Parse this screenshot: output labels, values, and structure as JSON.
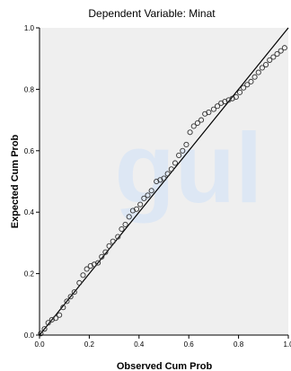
{
  "chart_data": {
    "type": "scatter",
    "title": "Dependent Variable: Minat",
    "xlabel": "Observed Cum Prob",
    "ylabel": "Expected Cum Prob",
    "xlim": [
      0.0,
      1.0
    ],
    "ylim": [
      0.0,
      1.0
    ],
    "x_ticks": [
      "0.0",
      "0.2",
      "0.4",
      "0.6",
      "0.8",
      "1.0"
    ],
    "y_ticks": [
      "0.0",
      "0.2",
      "0.4",
      "0.6",
      "0.8",
      "1.0"
    ],
    "grid": false,
    "legend": false,
    "reference_line": {
      "from": [
        0,
        0
      ],
      "to": [
        1,
        1
      ]
    },
    "background_text": "gul",
    "colors": {
      "plot_area": "#efefef",
      "points": "#333333",
      "line": "#000000",
      "watermark": "#dde7f4"
    },
    "points": [
      [
        0.005,
        0.005
      ],
      [
        0.02,
        0.02
      ],
      [
        0.035,
        0.04
      ],
      [
        0.05,
        0.05
      ],
      [
        0.065,
        0.055
      ],
      [
        0.08,
        0.065
      ],
      [
        0.095,
        0.09
      ],
      [
        0.11,
        0.11
      ],
      [
        0.125,
        0.125
      ],
      [
        0.14,
        0.14
      ],
      [
        0.16,
        0.17
      ],
      [
        0.175,
        0.195
      ],
      [
        0.19,
        0.215
      ],
      [
        0.205,
        0.225
      ],
      [
        0.22,
        0.23
      ],
      [
        0.235,
        0.235
      ],
      [
        0.25,
        0.255
      ],
      [
        0.265,
        0.27
      ],
      [
        0.28,
        0.29
      ],
      [
        0.295,
        0.305
      ],
      [
        0.315,
        0.32
      ],
      [
        0.33,
        0.345
      ],
      [
        0.345,
        0.36
      ],
      [
        0.36,
        0.385
      ],
      [
        0.375,
        0.405
      ],
      [
        0.39,
        0.41
      ],
      [
        0.405,
        0.425
      ],
      [
        0.42,
        0.445
      ],
      [
        0.435,
        0.455
      ],
      [
        0.45,
        0.47
      ],
      [
        0.47,
        0.5
      ],
      [
        0.485,
        0.505
      ],
      [
        0.5,
        0.51
      ],
      [
        0.515,
        0.525
      ],
      [
        0.53,
        0.54
      ],
      [
        0.545,
        0.56
      ],
      [
        0.56,
        0.585
      ],
      [
        0.575,
        0.6
      ],
      [
        0.59,
        0.62
      ],
      [
        0.605,
        0.66
      ],
      [
        0.62,
        0.68
      ],
      [
        0.635,
        0.69
      ],
      [
        0.65,
        0.7
      ],
      [
        0.665,
        0.72
      ],
      [
        0.68,
        0.725
      ],
      [
        0.7,
        0.735
      ],
      [
        0.715,
        0.745
      ],
      [
        0.73,
        0.755
      ],
      [
        0.745,
        0.76
      ],
      [
        0.76,
        0.765
      ],
      [
        0.775,
        0.77
      ],
      [
        0.79,
        0.775
      ],
      [
        0.805,
        0.79
      ],
      [
        0.82,
        0.805
      ],
      [
        0.835,
        0.815
      ],
      [
        0.85,
        0.825
      ],
      [
        0.865,
        0.84
      ],
      [
        0.88,
        0.855
      ],
      [
        0.895,
        0.87
      ],
      [
        0.91,
        0.88
      ],
      [
        0.925,
        0.895
      ],
      [
        0.94,
        0.905
      ],
      [
        0.955,
        0.915
      ],
      [
        0.97,
        0.925
      ],
      [
        0.985,
        0.935
      ]
    ]
  }
}
